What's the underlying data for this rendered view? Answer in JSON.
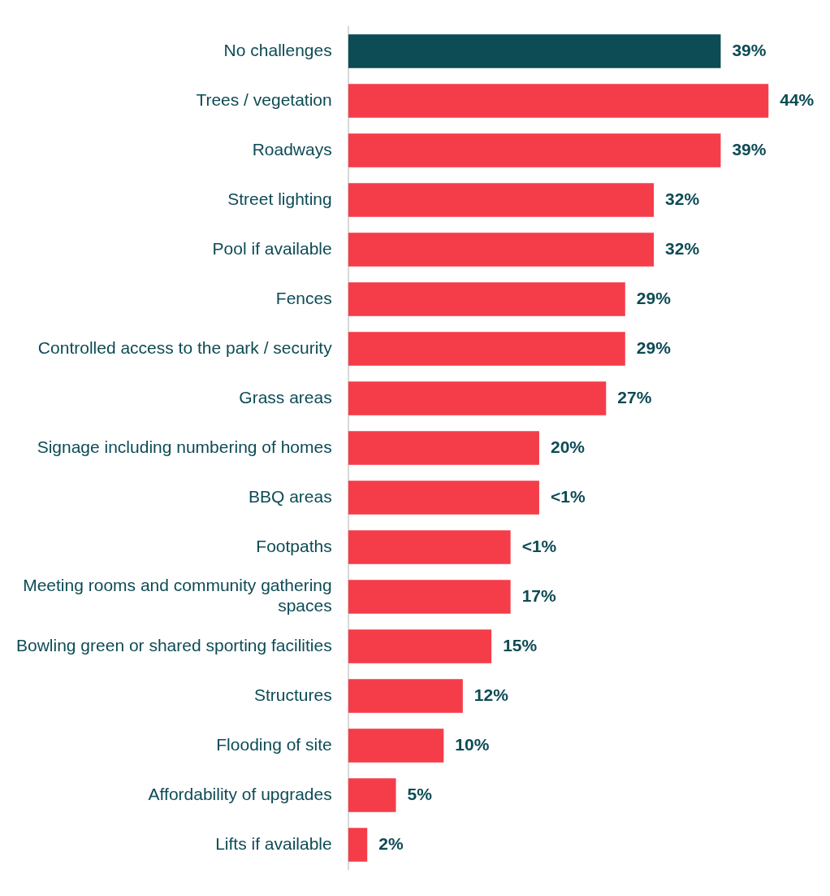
{
  "chart_data": {
    "type": "bar",
    "orientation": "horizontal",
    "categories": [
      "No challenges",
      "Trees / vegetation",
      "Roadways",
      "Street lighting",
      "Pool if available",
      "Fences",
      "Controlled access to the park / security",
      "Grass areas",
      "Signage including numbering of homes",
      "BBQ areas",
      "Footpaths",
      "Meeting rooms and community gathering spaces",
      "Bowling green or shared sporting facilities",
      "Structures",
      "Flooding of site",
      "Affordability of upgrades",
      "Lifts if available"
    ],
    "values": [
      39,
      44,
      39,
      32,
      32,
      29,
      29,
      27,
      20,
      20,
      17,
      17,
      15,
      12,
      10,
      5,
      2
    ],
    "colors": [
      "#0d4b55",
      "#f53d4a",
      "#f53d4a",
      "#f53d4a",
      "#f53d4a",
      "#f53d4a",
      "#f53d4a",
      "#f53d4a",
      "#f53d4a",
      "#f53d4a",
      "#f53d4a",
      "#f53d4a",
      "#f53d4a",
      "#f53d4a",
      "#f53d4a",
      "#f53d4a",
      "#f53d4a"
    ],
    "value_labels": [
      "39%",
      "44%",
      "39%",
      "32%",
      "32%",
      "29%",
      "29%",
      "27%",
      "20%",
      "<1%",
      "<1%",
      "17%",
      "15%",
      "12%",
      "10%",
      "5%",
      "2%"
    ],
    "tick_labels": "y",
    "grid": false,
    "legend": false
  }
}
